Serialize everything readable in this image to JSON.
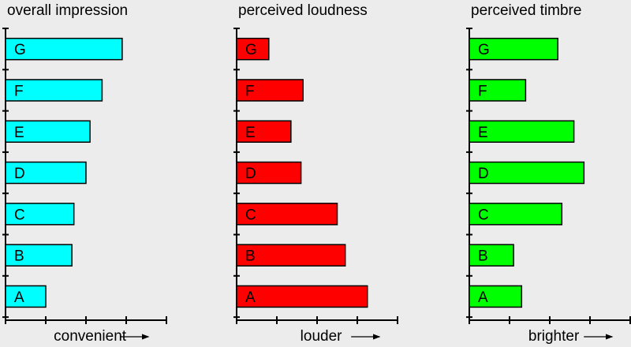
{
  "chart_data": [
    {
      "type": "bar",
      "orientation": "horizontal",
      "title": "overall impression",
      "xlabel": "convenient",
      "categories": [
        "A",
        "B",
        "C",
        "D",
        "E",
        "F",
        "G"
      ],
      "values": [
        1.0,
        1.65,
        1.7,
        2.0,
        2.1,
        2.4,
        2.9
      ],
      "xlim": [
        0,
        4
      ],
      "color": "#00ffff"
    },
    {
      "type": "bar",
      "orientation": "horizontal",
      "title": "perceived loudness",
      "xlabel": "louder",
      "categories": [
        "A",
        "B",
        "C",
        "D",
        "E",
        "F",
        "G"
      ],
      "values": [
        3.25,
        2.7,
        2.5,
        1.6,
        1.35,
        1.65,
        0.8
      ],
      "xlim": [
        0,
        4
      ],
      "color": "#ff0000"
    },
    {
      "type": "bar",
      "orientation": "horizontal",
      "title": "perceived timbre",
      "xlabel": "brighter",
      "categories": [
        "A",
        "B",
        "C",
        "D",
        "E",
        "F",
        "G"
      ],
      "values": [
        1.3,
        1.1,
        2.3,
        2.85,
        2.6,
        1.4,
        2.2
      ],
      "xlim": [
        0,
        4
      ],
      "color": "#00ff00"
    }
  ]
}
